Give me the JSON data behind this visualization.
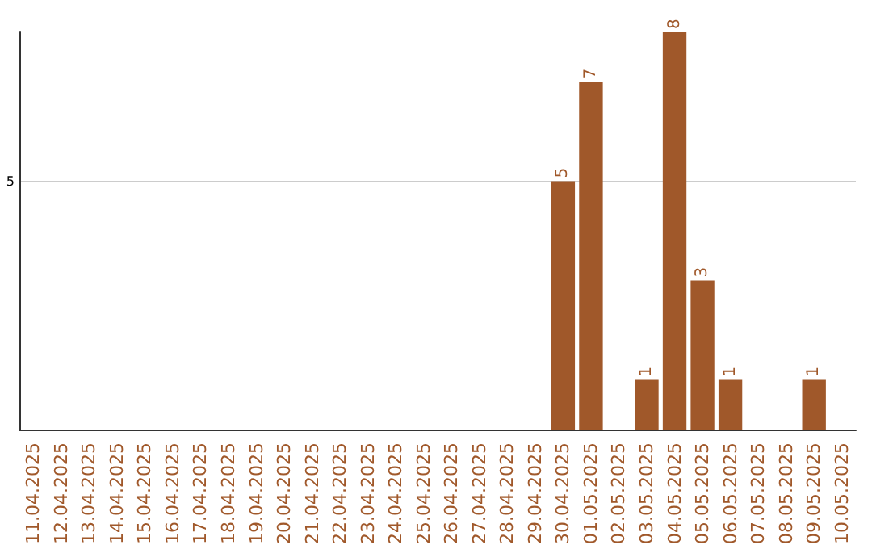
{
  "chart_data": {
    "type": "bar",
    "categories": [
      "11.04.2025",
      "12.04.2025",
      "13.04.2025",
      "14.04.2025",
      "15.04.2025",
      "16.04.2025",
      "17.04.2025",
      "18.04.2025",
      "19.04.2025",
      "20.04.2025",
      "21.04.2025",
      "22.04.2025",
      "23.04.2025",
      "24.04.2025",
      "25.04.2025",
      "26.04.2025",
      "27.04.2025",
      "28.04.2025",
      "29.04.2025",
      "30.04.2025",
      "01.05.2025",
      "02.05.2025",
      "03.05.2025",
      "04.05.2025",
      "05.05.2025",
      "06.05.2025",
      "07.05.2025",
      "08.05.2025",
      "09.05.2025",
      "10.05.2025"
    ],
    "values": [
      null,
      null,
      null,
      null,
      null,
      null,
      null,
      null,
      null,
      null,
      null,
      null,
      null,
      null,
      null,
      null,
      null,
      null,
      null,
      5,
      7,
      null,
      1,
      8,
      3,
      1,
      null,
      null,
      1,
      null
    ],
    "value_labels": [
      null,
      null,
      null,
      null,
      null,
      null,
      null,
      null,
      null,
      null,
      null,
      null,
      null,
      null,
      null,
      null,
      null,
      null,
      null,
      "5",
      "7",
      null,
      "1",
      "8",
      "3",
      "1",
      null,
      null,
      "1",
      null
    ],
    "color": "#a0582a",
    "ylim": [
      0,
      8
    ],
    "yticks": [
      5
    ],
    "grid": "y"
  }
}
